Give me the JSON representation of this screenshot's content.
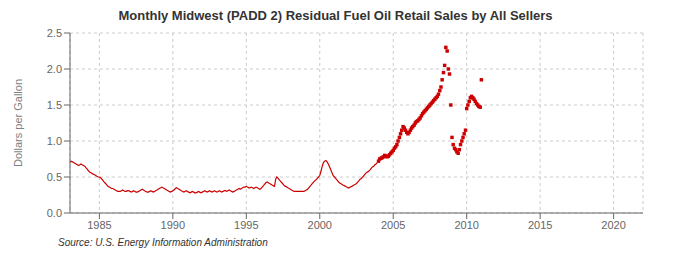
{
  "chart_data": {
    "type": "line",
    "title": "Monthly Midwest (PADD 2) Residual Fuel Oil Retail Sales by All Sellers",
    "y_label": "Dollars per Gallon",
    "annotations": [
      "Source: U.S. Energy Information Administration"
    ],
    "xlim": [
      1983.0,
      2022.0
    ],
    "ylim": [
      0.0,
      2.5
    ],
    "xticks": [
      1985,
      1990,
      1995,
      2000,
      2005,
      2010,
      2015,
      2020
    ],
    "yticks": [
      {
        "value": 0.0,
        "label": "0.0"
      },
      0.5,
      {
        "value": 1.0,
        "label": "1.0"
      },
      1.5,
      {
        "value": 2.0,
        "label": "2.0"
      },
      2.5
    ],
    "grid": true,
    "series": [
      {
        "type": "line",
        "color": "#cc0000",
        "x": [
          1983.0,
          1983.08,
          1983.17,
          1983.25,
          1983.33,
          1983.42,
          1983.5,
          1983.58,
          1983.67,
          1983.75,
          1983.83,
          1983.92,
          1984.0,
          1984.08,
          1984.17,
          1984.25,
          1984.33,
          1984.42,
          1984.5,
          1984.58,
          1984.67,
          1984.75,
          1984.83,
          1984.92,
          1985.0,
          1985.08,
          1985.17,
          1985.25,
          1985.33,
          1985.42,
          1985.5,
          1985.58,
          1985.67,
          1985.75,
          1985.83,
          1985.92,
          1986.0,
          1986.08,
          1986.17,
          1986.25,
          1986.33,
          1986.42,
          1986.5,
          1986.58,
          1986.67,
          1986.75,
          1986.83,
          1986.92,
          1987.0,
          1987.08,
          1987.17,
          1987.25,
          1987.33,
          1987.42,
          1987.5,
          1987.58,
          1987.67,
          1987.75,
          1987.83,
          1987.92,
          1988.0,
          1988.08,
          1988.17,
          1988.25,
          1988.33,
          1988.42,
          1988.5,
          1988.58,
          1988.67,
          1988.75,
          1988.83,
          1988.92,
          1989.0,
          1989.08,
          1989.17,
          1989.25,
          1989.33,
          1989.42,
          1989.5,
          1989.58,
          1989.67,
          1989.75,
          1989.83,
          1989.92,
          1990.0,
          1990.08,
          1990.17,
          1990.25,
          1990.33,
          1990.42,
          1990.5,
          1990.58,
          1990.67,
          1990.75,
          1990.83,
          1990.92,
          1991.0,
          1991.08,
          1991.17,
          1991.25,
          1991.33,
          1991.42,
          1991.5,
          1991.58,
          1991.67,
          1991.75,
          1991.83,
          1991.92,
          1992.0,
          1992.08,
          1992.17,
          1992.25,
          1992.33,
          1992.42,
          1992.5,
          1992.58,
          1992.67,
          1992.75,
          1992.83,
          1992.92,
          1993.0,
          1993.08,
          1993.17,
          1993.25,
          1993.33,
          1993.42,
          1993.5,
          1993.58,
          1993.67,
          1993.75,
          1993.83,
          1993.92,
          1994.0,
          1994.08,
          1994.17,
          1994.25,
          1994.33,
          1994.42,
          1994.5,
          1994.58,
          1994.67,
          1994.75,
          1994.83,
          1994.92,
          1995.0,
          1995.08,
          1995.17,
          1995.25,
          1995.33,
          1995.42,
          1995.5,
          1995.58,
          1995.67,
          1995.75,
          1995.83,
          1995.92,
          1996.0,
          1996.08,
          1996.17,
          1996.25,
          1996.33,
          1996.42,
          1996.5,
          1996.58,
          1996.67,
          1996.75,
          1996.83,
          1996.92,
          1997.0,
          1997.08,
          1997.17,
          1997.25,
          1997.33,
          1997.42,
          1997.5,
          1997.58,
          1997.67,
          1997.75,
          1997.83,
          1997.92,
          1998.0,
          1998.08,
          1998.17,
          1998.25,
          1998.33,
          1998.42,
          1998.5,
          1998.58,
          1998.67,
          1998.75,
          1998.83,
          1998.92,
          1999.0,
          1999.08,
          1999.17,
          1999.25,
          1999.33,
          1999.42,
          1999.5,
          1999.58,
          1999.67,
          1999.75,
          1999.83,
          1999.92,
          2000.0,
          2000.08,
          2000.17,
          2000.25,
          2000.33,
          2000.42,
          2000.5,
          2000.58,
          2000.67,
          2000.75,
          2000.83,
          2000.92,
          2001.0,
          2001.08,
          2001.17,
          2001.25,
          2001.33,
          2001.42,
          2001.5,
          2001.58,
          2001.67,
          2001.75,
          2001.83,
          2001.92,
          2002.0,
          2002.08,
          2002.17,
          2002.25,
          2002.33,
          2002.42,
          2002.5,
          2002.58,
          2002.67,
          2002.75,
          2002.83,
          2002.92,
          2003.0,
          2003.08,
          2003.17,
          2003.25,
          2003.33,
          2003.42,
          2003.5,
          2003.58,
          2003.67,
          2003.75,
          2003.83,
          2003.92
        ],
        "values": [
          0.7,
          0.72,
          0.71,
          0.7,
          0.69,
          0.68,
          0.67,
          0.66,
          0.67,
          0.68,
          0.67,
          0.66,
          0.65,
          0.63,
          0.61,
          0.59,
          0.57,
          0.56,
          0.55,
          0.54,
          0.53,
          0.52,
          0.51,
          0.5,
          0.5,
          0.49,
          0.47,
          0.45,
          0.43,
          0.41,
          0.39,
          0.37,
          0.36,
          0.35,
          0.34,
          0.34,
          0.33,
          0.32,
          0.31,
          0.3,
          0.3,
          0.3,
          0.31,
          0.32,
          0.31,
          0.3,
          0.3,
          0.31,
          0.31,
          0.3,
          0.29,
          0.3,
          0.31,
          0.3,
          0.29,
          0.29,
          0.3,
          0.31,
          0.32,
          0.33,
          0.32,
          0.31,
          0.3,
          0.29,
          0.29,
          0.3,
          0.31,
          0.3,
          0.29,
          0.3,
          0.31,
          0.32,
          0.33,
          0.34,
          0.35,
          0.36,
          0.35,
          0.34,
          0.33,
          0.32,
          0.31,
          0.3,
          0.29,
          0.3,
          0.31,
          0.32,
          0.34,
          0.35,
          0.34,
          0.33,
          0.32,
          0.31,
          0.3,
          0.29,
          0.3,
          0.31,
          0.3,
          0.29,
          0.28,
          0.29,
          0.3,
          0.29,
          0.28,
          0.28,
          0.29,
          0.3,
          0.29,
          0.28,
          0.29,
          0.3,
          0.31,
          0.3,
          0.29,
          0.3,
          0.31,
          0.3,
          0.29,
          0.3,
          0.31,
          0.3,
          0.29,
          0.3,
          0.31,
          0.3,
          0.29,
          0.3,
          0.31,
          0.31,
          0.3,
          0.31,
          0.32,
          0.31,
          0.3,
          0.29,
          0.3,
          0.31,
          0.32,
          0.33,
          0.34,
          0.33,
          0.34,
          0.35,
          0.36,
          0.36,
          0.37,
          0.36,
          0.35,
          0.35,
          0.36,
          0.35,
          0.34,
          0.35,
          0.36,
          0.35,
          0.34,
          0.33,
          0.34,
          0.36,
          0.38,
          0.4,
          0.42,
          0.43,
          0.42,
          0.41,
          0.4,
          0.39,
          0.38,
          0.37,
          0.47,
          0.5,
          0.48,
          0.46,
          0.44,
          0.42,
          0.4,
          0.38,
          0.37,
          0.36,
          0.35,
          0.34,
          0.33,
          0.32,
          0.31,
          0.3,
          0.3,
          0.3,
          0.3,
          0.3,
          0.3,
          0.3,
          0.3,
          0.3,
          0.31,
          0.32,
          0.33,
          0.35,
          0.37,
          0.39,
          0.41,
          0.43,
          0.45,
          0.46,
          0.48,
          0.5,
          0.52,
          0.58,
          0.65,
          0.7,
          0.72,
          0.73,
          0.71,
          0.68,
          0.64,
          0.6,
          0.56,
          0.52,
          0.5,
          0.48,
          0.46,
          0.44,
          0.42,
          0.41,
          0.4,
          0.39,
          0.38,
          0.37,
          0.36,
          0.35,
          0.35,
          0.36,
          0.37,
          0.38,
          0.39,
          0.4,
          0.41,
          0.43,
          0.45,
          0.47,
          0.48,
          0.5,
          0.52,
          0.54,
          0.56,
          0.57,
          0.58,
          0.6,
          0.62,
          0.64,
          0.65,
          0.67,
          0.68,
          0.7
        ]
      },
      {
        "type": "scatter",
        "marker": "square",
        "color": "#cc0000",
        "x": [
          2004.0,
          2004.08,
          2004.17,
          2004.25,
          2004.33,
          2004.42,
          2004.5,
          2004.58,
          2004.67,
          2004.75,
          2004.83,
          2004.92,
          2005.0,
          2005.08,
          2005.17,
          2005.25,
          2005.33,
          2005.42,
          2005.5,
          2005.58,
          2005.67,
          2005.75,
          2005.83,
          2005.92,
          2006.0,
          2006.08,
          2006.17,
          2006.25,
          2006.33,
          2006.42,
          2006.5,
          2006.58,
          2006.67,
          2006.75,
          2006.83,
          2006.92,
          2007.0,
          2007.08,
          2007.17,
          2007.25,
          2007.33,
          2007.42,
          2007.5,
          2007.58,
          2007.67,
          2007.75,
          2007.83,
          2007.92,
          2008.0,
          2008.08,
          2008.17,
          2008.25,
          2008.33,
          2008.42,
          2008.5,
          2008.58,
          2008.67,
          2008.75,
          2008.83,
          2008.92,
          2009.0,
          2009.08,
          2009.17,
          2009.25,
          2009.33,
          2009.42,
          2009.5,
          2009.58,
          2009.67,
          2009.75,
          2009.83,
          2009.92,
          2010.0,
          2010.08,
          2010.17,
          2010.25,
          2010.33,
          2010.42,
          2010.5,
          2010.58,
          2010.67,
          2010.75,
          2010.83,
          2010.92,
          2011.0
        ],
        "values": [
          0.72,
          0.75,
          0.76,
          0.77,
          0.78,
          0.8,
          0.79,
          0.78,
          0.79,
          0.81,
          0.83,
          0.85,
          0.87,
          0.9,
          0.92,
          0.95,
          1.0,
          1.05,
          1.1,
          1.15,
          1.2,
          1.18,
          1.15,
          1.12,
          1.1,
          1.12,
          1.15,
          1.18,
          1.2,
          1.22,
          1.25,
          1.27,
          1.28,
          1.3,
          1.32,
          1.35,
          1.38,
          1.4,
          1.42,
          1.44,
          1.46,
          1.48,
          1.5,
          1.52,
          1.54,
          1.56,
          1.58,
          1.6,
          1.62,
          1.65,
          1.7,
          1.75,
          1.85,
          1.95,
          2.05,
          2.3,
          2.25,
          2.0,
          1.93,
          1.5,
          1.05,
          0.95,
          0.9,
          0.88,
          0.85,
          0.83,
          0.88,
          0.95,
          1.0,
          1.05,
          1.1,
          1.15,
          1.45,
          1.5,
          1.55,
          1.6,
          1.62,
          1.6,
          1.58,
          1.55,
          1.52,
          1.5,
          1.48,
          1.47,
          1.85
        ]
      }
    ]
  }
}
